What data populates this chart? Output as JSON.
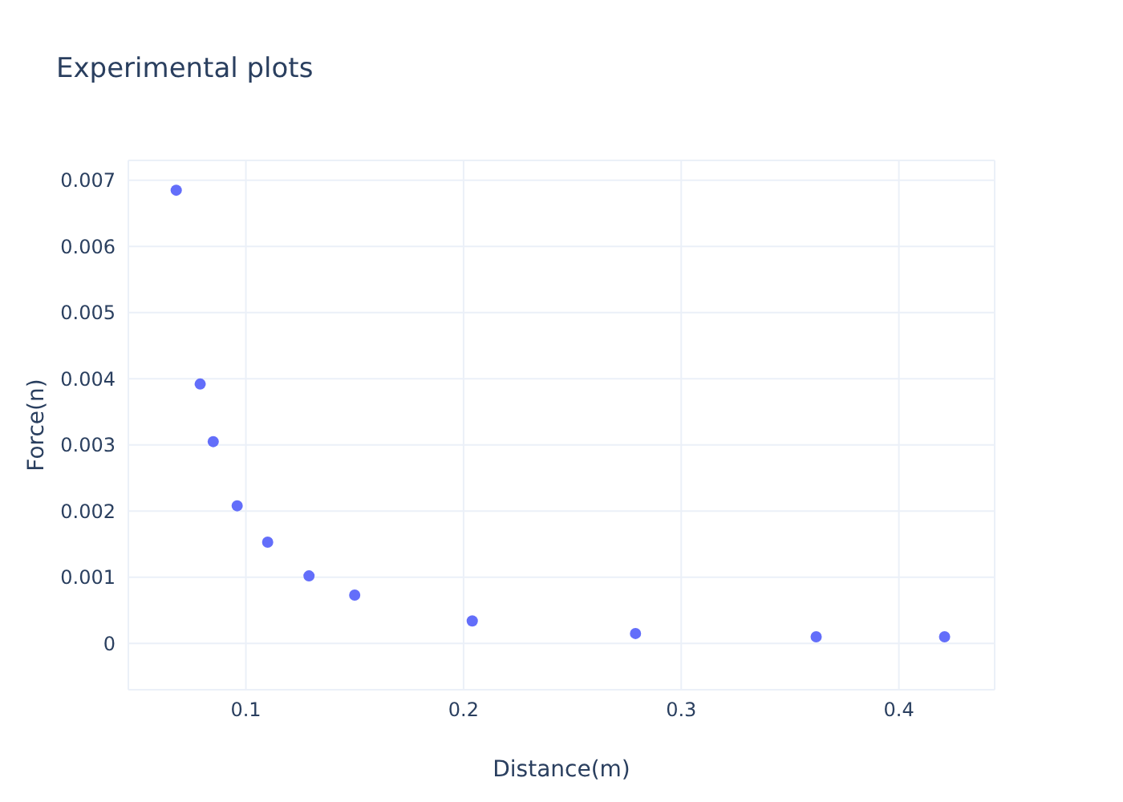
{
  "chart_data": {
    "type": "scatter",
    "title": "Experimental plots",
    "xlabel": "Distance(m)",
    "ylabel": "Force(n)",
    "x": [
      0.068,
      0.079,
      0.085,
      0.096,
      0.11,
      0.129,
      0.15,
      0.204,
      0.279,
      0.362,
      0.421
    ],
    "series": [
      {
        "color": "#636efa",
        "values": [
          0.00685,
          0.00392,
          0.00305,
          0.00208,
          0.00153,
          0.00102,
          0.00073,
          0.00034,
          0.00015,
          0.0001,
          0.0001
        ]
      }
    ],
    "xlim": [
      0.046,
      0.444
    ],
    "ylim": [
      -0.0007,
      0.0073
    ],
    "xticks": [
      0.1,
      0.2,
      0.3,
      0.4
    ],
    "yticks": [
      0,
      0.001,
      0.002,
      0.003,
      0.004,
      0.005,
      0.006,
      0.007
    ],
    "grid": true,
    "marker": "circle",
    "legend": false
  }
}
